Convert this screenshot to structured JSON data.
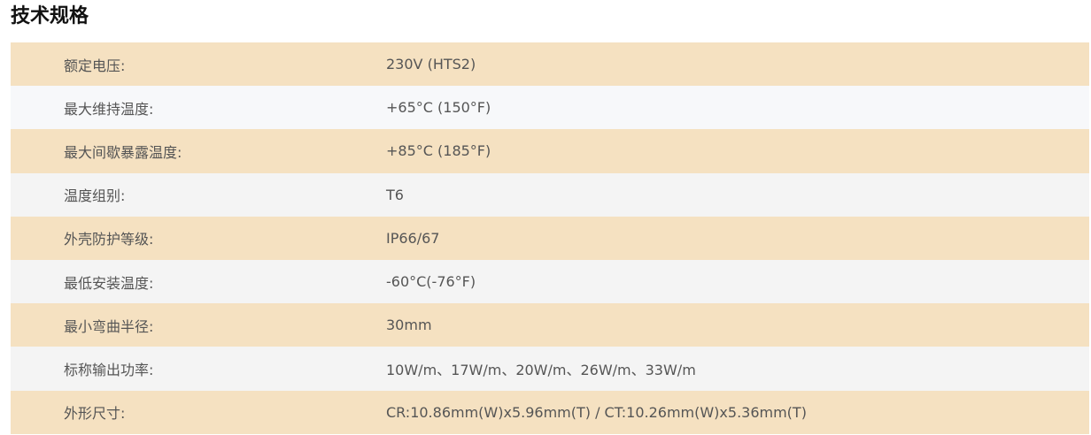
{
  "title": "技术规格",
  "colors": {
    "row_odd": "#f5e1c1",
    "row_even": "#f4f4f4",
    "text": "#555555"
  },
  "specs": [
    {
      "label": "额定电压:",
      "value": "230V (HTS2)"
    },
    {
      "label": "最大维持温度:",
      "value": "+65°C (150°F)"
    },
    {
      "label": "最大间歇暴露温度:",
      "value": "+85°C (185°F)"
    },
    {
      "label": "温度组别:",
      "value": "T6"
    },
    {
      "label": "外壳防护等级:",
      "value": "IP66/67"
    },
    {
      "label": "最低安装温度:",
      "value": "-60°C(-76°F)"
    },
    {
      "label": "最小弯曲半径:",
      "value": "30mm"
    },
    {
      "label": "标称输出功率:",
      "value": "10W/m、17W/m、20W/m、26W/m、33W/m"
    },
    {
      "label": "外形尺寸:",
      "value": "CR:10.86mm(W)x5.96mm(T) / CT:10.26mm(W)x5.36mm(T)"
    }
  ]
}
